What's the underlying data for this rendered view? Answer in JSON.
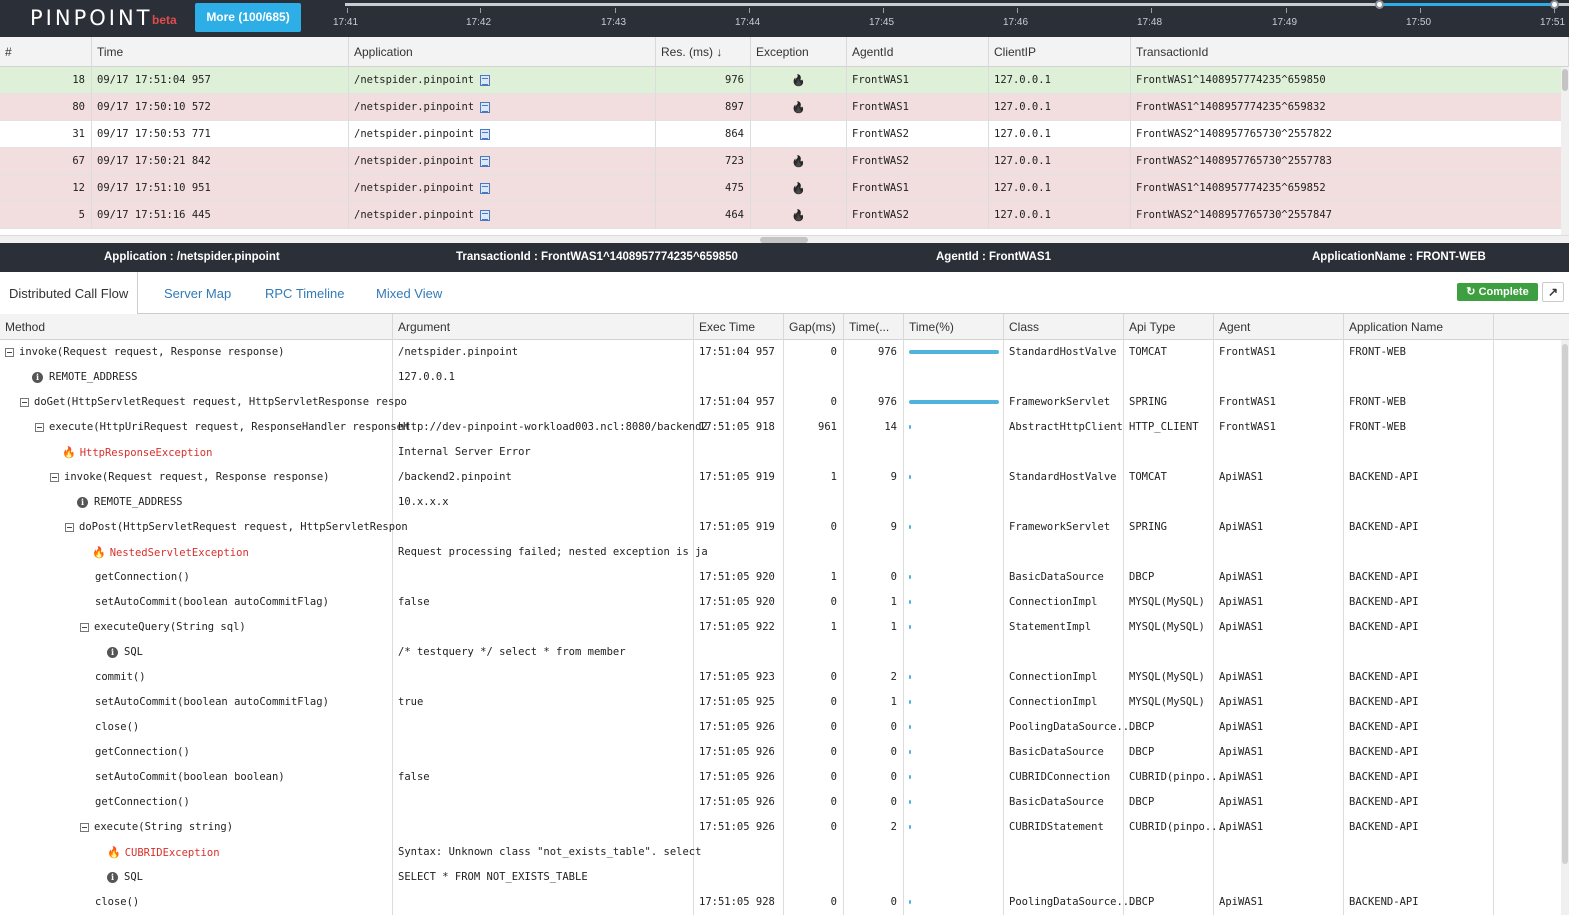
{
  "topbar": {
    "logo": "PINPOINT",
    "beta": "beta",
    "more_button": "More (100/685)",
    "timeline_labels": [
      "17:41",
      "17:42",
      "17:43",
      "17:44",
      "17:45",
      "17:46",
      "17:48",
      "17:49",
      "17:50",
      "17:51"
    ],
    "accent": "#2eaee6"
  },
  "tx_list": {
    "columns": [
      "#",
      "Time",
      "Application",
      "Res. (ms) ↓",
      "Exception",
      "AgentId",
      "ClientIP",
      "TransactionId"
    ],
    "rows": [
      {
        "n": "18",
        "time": "09/17 17:51:04 957",
        "app": "/netspider.pinpoint",
        "res": "976",
        "exception": true,
        "agent": "FrontWAS1",
        "ip": "127.0.0.1",
        "txid": "FrontWAS1^1408957774235^659850",
        "state": "sel"
      },
      {
        "n": "80",
        "time": "09/17 17:50:10 572",
        "app": "/netspider.pinpoint",
        "res": "897",
        "exception": true,
        "agent": "FrontWAS1",
        "ip": "127.0.0.1",
        "txid": "FrontWAS1^1408957774235^659832",
        "state": "err"
      },
      {
        "n": "31",
        "time": "09/17 17:50:53 771",
        "app": "/netspider.pinpoint",
        "res": "864",
        "exception": false,
        "agent": "FrontWAS2",
        "ip": "127.0.0.1",
        "txid": "FrontWAS2^1408957765730^2557822",
        "state": "ok"
      },
      {
        "n": "67",
        "time": "09/17 17:50:21 842",
        "app": "/netspider.pinpoint",
        "res": "723",
        "exception": true,
        "agent": "FrontWAS2",
        "ip": "127.0.0.1",
        "txid": "FrontWAS2^1408957765730^2557783",
        "state": "err"
      },
      {
        "n": "12",
        "time": "09/17 17:51:10 951",
        "app": "/netspider.pinpoint",
        "res": "475",
        "exception": true,
        "agent": "FrontWAS1",
        "ip": "127.0.0.1",
        "txid": "FrontWAS1^1408957774235^659852",
        "state": "err"
      },
      {
        "n": "5",
        "time": "09/17 17:51:16 445",
        "app": "/netspider.pinpoint",
        "res": "464",
        "exception": true,
        "agent": "FrontWAS2",
        "ip": "127.0.0.1",
        "txid": "FrontWAS2^1408957765730^2557847",
        "state": "err"
      }
    ]
  },
  "infobar": {
    "application": "Application : /netspider.pinpoint",
    "transaction": "TransactionId : FrontWAS1^1408957774235^659850",
    "agent": "AgentId : FrontWAS1",
    "app_name": "ApplicationName : FRONT-WEB"
  },
  "tabs": [
    "Distributed Call Flow",
    "Server Map",
    "RPC Timeline",
    "Mixed View"
  ],
  "complete_button": "Complete",
  "calltree": {
    "columns": [
      "Method",
      "Argument",
      "Exec Time",
      "Gap(ms)",
      "Time(...",
      "Time(%)",
      "Class",
      "Api Type",
      "Agent",
      "Application Name"
    ],
    "rows": [
      {
        "depth": 0,
        "kind": "toggle",
        "method": "invoke(Request request, Response response)",
        "arg": "/netspider.pinpoint",
        "exec": "17:51:04 957",
        "gap": "0",
        "time": "976",
        "pct": 100,
        "cls": "StandardHostValve",
        "api": "TOMCAT",
        "agent": "FrontWAS1",
        "appname": "FRONT-WEB"
      },
      {
        "depth": 1,
        "kind": "info",
        "method": "REMOTE_ADDRESS",
        "arg": "127.0.0.1",
        "exec": "",
        "gap": "",
        "time": "",
        "pct": null,
        "cls": "",
        "api": "",
        "agent": "",
        "appname": ""
      },
      {
        "depth": 1,
        "kind": "toggle",
        "method": "doGet(HttpServletRequest request, HttpServletResponse respo",
        "arg": "",
        "exec": "17:51:04 957",
        "gap": "0",
        "time": "976",
        "pct": 100,
        "cls": "FrameworkServlet",
        "api": "SPRING",
        "agent": "FrontWAS1",
        "appname": "FRONT-WEB"
      },
      {
        "depth": 2,
        "kind": "toggle",
        "method": "execute(HttpUriRequest request, ResponseHandler responseH",
        "arg": "http://dev-pinpoint-workload003.ncl:8080/backend2",
        "exec": "17:51:05 918",
        "gap": "961",
        "time": "14",
        "pct": 2,
        "cls": "AbstractHttpClient",
        "api": "HTTP_CLIENT",
        "agent": "FrontWAS1",
        "appname": "FRONT-WEB"
      },
      {
        "depth": 3,
        "kind": "exception",
        "method": "HttpResponseException",
        "arg": "Internal Server Error",
        "exec": "",
        "gap": "",
        "time": "",
        "pct": null,
        "cls": "",
        "api": "",
        "agent": "",
        "appname": ""
      },
      {
        "depth": 3,
        "kind": "toggle",
        "method": "invoke(Request request, Response response)",
        "arg": "/backend2.pinpoint",
        "exec": "17:51:05 919",
        "gap": "1",
        "time": "9",
        "pct": 1,
        "cls": "StandardHostValve",
        "api": "TOMCAT",
        "agent": "ApiWAS1",
        "appname": "BACKEND-API"
      },
      {
        "depth": 4,
        "kind": "info",
        "method": "REMOTE_ADDRESS",
        "arg": "10.x.x.x",
        "exec": "",
        "gap": "",
        "time": "",
        "pct": null,
        "cls": "",
        "api": "",
        "agent": "",
        "appname": ""
      },
      {
        "depth": 4,
        "kind": "toggle",
        "method": "doPost(HttpServletRequest request, HttpServletRespon",
        "arg": "",
        "exec": "17:51:05 919",
        "gap": "0",
        "time": "9",
        "pct": 1,
        "cls": "FrameworkServlet",
        "api": "SPRING",
        "agent": "ApiWAS1",
        "appname": "BACKEND-API"
      },
      {
        "depth": 5,
        "kind": "exception",
        "method": "NestedServletException",
        "arg": "Request processing failed; nested exception is ja",
        "exec": "",
        "gap": "",
        "time": "",
        "pct": null,
        "cls": "",
        "api": "",
        "agent": "",
        "appname": ""
      },
      {
        "depth": 5,
        "kind": "leaf",
        "method": "getConnection()",
        "arg": "",
        "exec": "17:51:05 920",
        "gap": "1",
        "time": "0",
        "pct": 0.5,
        "cls": "BasicDataSource",
        "api": "DBCP",
        "agent": "ApiWAS1",
        "appname": "BACKEND-API"
      },
      {
        "depth": 5,
        "kind": "leaf",
        "method": "setAutoCommit(boolean autoCommitFlag)",
        "arg": "false",
        "exec": "17:51:05 920",
        "gap": "0",
        "time": "1",
        "pct": 0.5,
        "cls": "ConnectionImpl",
        "api": "MYSQL(MySQL)",
        "agent": "ApiWAS1",
        "appname": "BACKEND-API"
      },
      {
        "depth": 5,
        "kind": "toggle",
        "method": "executeQuery(String sql)",
        "arg": "",
        "exec": "17:51:05 922",
        "gap": "1",
        "time": "1",
        "pct": 0.5,
        "cls": "StatementImpl",
        "api": "MYSQL(MySQL)",
        "agent": "ApiWAS1",
        "appname": "BACKEND-API"
      },
      {
        "depth": 6,
        "kind": "info",
        "method": "SQL",
        "arg": "/* testquery */ select * from member",
        "exec": "",
        "gap": "",
        "time": "",
        "pct": null,
        "cls": "",
        "api": "",
        "agent": "",
        "appname": ""
      },
      {
        "depth": 5,
        "kind": "leaf",
        "method": "commit()",
        "arg": "",
        "exec": "17:51:05 923",
        "gap": "0",
        "time": "2",
        "pct": 0.5,
        "cls": "ConnectionImpl",
        "api": "MYSQL(MySQL)",
        "agent": "ApiWAS1",
        "appname": "BACKEND-API"
      },
      {
        "depth": 5,
        "kind": "leaf",
        "method": "setAutoCommit(boolean autoCommitFlag)",
        "arg": "true",
        "exec": "17:51:05 925",
        "gap": "0",
        "time": "1",
        "pct": 0.5,
        "cls": "ConnectionImpl",
        "api": "MYSQL(MySQL)",
        "agent": "ApiWAS1",
        "appname": "BACKEND-API"
      },
      {
        "depth": 5,
        "kind": "leaf",
        "method": "close()",
        "arg": "",
        "exec": "17:51:05 926",
        "gap": "0",
        "time": "0",
        "pct": 0.5,
        "cls": "PoolingDataSource...",
        "api": "DBCP",
        "agent": "ApiWAS1",
        "appname": "BACKEND-API"
      },
      {
        "depth": 5,
        "kind": "leaf",
        "method": "getConnection()",
        "arg": "",
        "exec": "17:51:05 926",
        "gap": "0",
        "time": "0",
        "pct": 0.5,
        "cls": "BasicDataSource",
        "api": "DBCP",
        "agent": "ApiWAS1",
        "appname": "BACKEND-API"
      },
      {
        "depth": 5,
        "kind": "leaf",
        "method": "setAutoCommit(boolean boolean)",
        "arg": "false",
        "exec": "17:51:05 926",
        "gap": "0",
        "time": "0",
        "pct": 0.5,
        "cls": "CUBRIDConnection",
        "api": "CUBRID(pinpo...",
        "agent": "ApiWAS1",
        "appname": "BACKEND-API"
      },
      {
        "depth": 5,
        "kind": "leaf",
        "method": "getConnection()",
        "arg": "",
        "exec": "17:51:05 926",
        "gap": "0",
        "time": "0",
        "pct": 0.5,
        "cls": "BasicDataSource",
        "api": "DBCP",
        "agent": "ApiWAS1",
        "appname": "BACKEND-API"
      },
      {
        "depth": 5,
        "kind": "toggle",
        "method": "execute(String string)",
        "arg": "",
        "exec": "17:51:05 926",
        "gap": "0",
        "time": "2",
        "pct": 0.5,
        "cls": "CUBRIDStatement",
        "api": "CUBRID(pinpo...",
        "agent": "ApiWAS1",
        "appname": "BACKEND-API"
      },
      {
        "depth": 6,
        "kind": "exception",
        "method": "CUBRIDException",
        "arg": "Syntax: Unknown class \"not_exists_table\". select",
        "exec": "",
        "gap": "",
        "time": "",
        "pct": null,
        "cls": "",
        "api": "",
        "agent": "",
        "appname": ""
      },
      {
        "depth": 6,
        "kind": "info",
        "method": "SQL",
        "arg": "SELECT * FROM NOT_EXISTS_TABLE",
        "exec": "",
        "gap": "",
        "time": "",
        "pct": null,
        "cls": "",
        "api": "",
        "agent": "",
        "appname": ""
      },
      {
        "depth": 5,
        "kind": "leaf",
        "method": "close()",
        "arg": "",
        "exec": "17:51:05 928",
        "gap": "0",
        "time": "0",
        "pct": 0.5,
        "cls": "PoolingDataSource...",
        "api": "DBCP",
        "agent": "ApiWAS1",
        "appname": "BACKEND-API"
      }
    ]
  },
  "colors": {
    "selected_row": "#dff0d8",
    "error_row": "#f2dede",
    "bar": "#4fb3dc",
    "exception": "#d9302c",
    "complete": "#3d9f3f"
  }
}
